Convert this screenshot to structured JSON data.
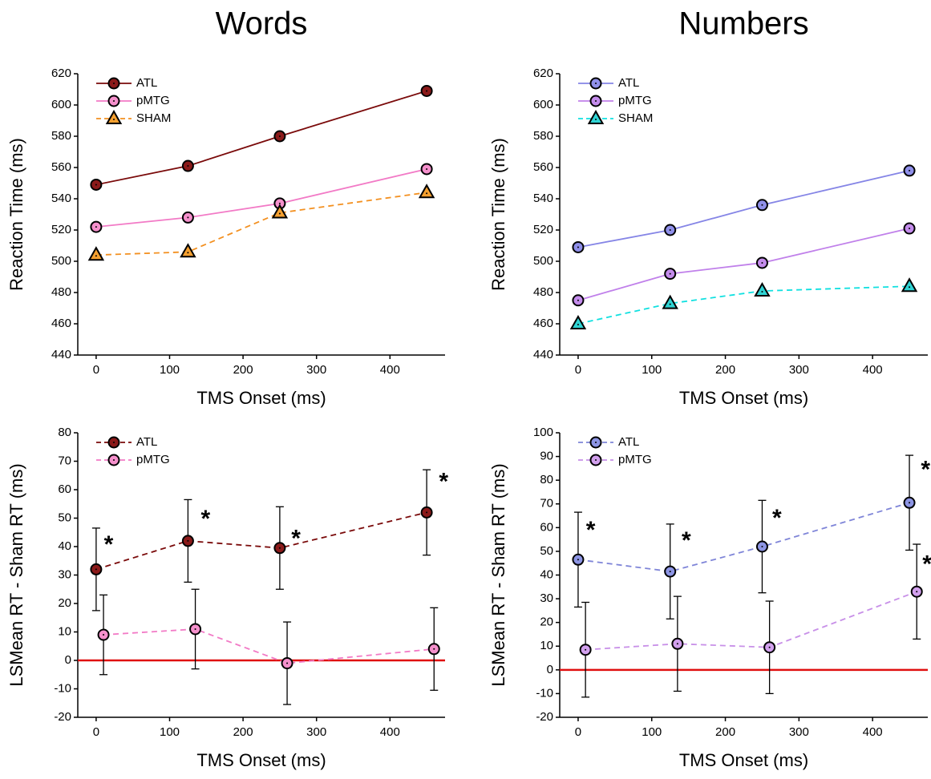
{
  "chart_data": [
    {
      "type": "line",
      "title": "Words",
      "xlabel": "TMS Onset (ms)",
      "ylabel": "Reaction Time (ms)",
      "xlim": [
        -25,
        475
      ],
      "ylim": [
        440,
        620
      ],
      "xticks": [
        0,
        100,
        200,
        300,
        400
      ],
      "yticks": [
        440,
        460,
        480,
        500,
        520,
        540,
        560,
        580,
        600,
        620
      ],
      "legend": "upper left",
      "series": [
        {
          "name": "ATL",
          "color": "#7a0a0a",
          "marker_color": "#8b1a1a",
          "marker": "circle",
          "linestyle": "solid",
          "x": [
            0,
            125,
            250,
            450
          ],
          "values": [
            549,
            561,
            580,
            609
          ]
        },
        {
          "name": "pMTG",
          "color": "#f27ac6",
          "marker_color": "#f590cc",
          "marker": "circle",
          "linestyle": "solid",
          "x": [
            0,
            125,
            250,
            450
          ],
          "values": [
            522,
            528,
            537,
            559
          ]
        },
        {
          "name": "SHAM",
          "color": "#f39020",
          "marker_color": "#f5a030",
          "marker": "triangle",
          "linestyle": "dashed",
          "x": [
            0,
            125,
            250,
            450
          ],
          "values": [
            504,
            506,
            531,
            544
          ]
        }
      ]
    },
    {
      "type": "line",
      "title": "Numbers",
      "xlabel": "TMS Onset (ms)",
      "ylabel": "Reaction Time (ms)",
      "xlim": [
        -25,
        475
      ],
      "ylim": [
        440,
        620
      ],
      "xticks": [
        0,
        100,
        200,
        300,
        400
      ],
      "yticks": [
        440,
        460,
        480,
        500,
        520,
        540,
        560,
        580,
        600,
        620
      ],
      "legend": "upper left",
      "series": [
        {
          "name": "ATL",
          "color": "#8585e6",
          "marker_color": "#9090ea",
          "marker": "circle",
          "linestyle": "solid",
          "x": [
            0,
            125,
            250,
            450
          ],
          "values": [
            509,
            520,
            536,
            558
          ]
        },
        {
          "name": "pMTG",
          "color": "#c080ea",
          "marker_color": "#c48cec",
          "marker": "circle",
          "linestyle": "solid",
          "x": [
            0,
            125,
            250,
            450
          ],
          "values": [
            475,
            492,
            499,
            521
          ]
        },
        {
          "name": "SHAM",
          "color": "#10e0e0",
          "marker_color": "#30d4d4",
          "marker": "triangle",
          "linestyle": "dashed",
          "x": [
            0,
            125,
            250,
            450
          ],
          "values": [
            460,
            473,
            481,
            484
          ]
        }
      ]
    },
    {
      "type": "line",
      "xlabel": "TMS Onset (ms)",
      "ylabel": "LSMean RT - Sham RT (ms)",
      "xlim": [
        -25,
        475
      ],
      "ylim": [
        -20,
        80
      ],
      "xticks": [
        0,
        100,
        200,
        300,
        400
      ],
      "yticks": [
        -20,
        -10,
        0,
        10,
        20,
        30,
        40,
        50,
        60,
        70,
        80
      ],
      "legend": "upper left",
      "hline": {
        "value": 0,
        "color": "#e01010"
      },
      "series": [
        {
          "name": "ATL",
          "color": "#7a0a0a",
          "marker_color": "#8b1a1a",
          "marker": "circle",
          "linestyle": "dashed",
          "x": [
            0,
            125,
            250,
            450
          ],
          "values": [
            32,
            42,
            39.5,
            52
          ],
          "errors": [
            14.5,
            14.5,
            14.5,
            15
          ]
        },
        {
          "name": "pMTG",
          "color": "#f27ac6",
          "marker_color": "#f590cc",
          "marker": "circle",
          "linestyle": "dashed",
          "x": [
            10,
            135,
            260,
            460
          ],
          "values": [
            9,
            11,
            -1,
            4
          ],
          "errors": [
            14,
            14,
            14.5,
            14.5
          ]
        }
      ],
      "annotations": [
        {
          "text": "*",
          "x": 17,
          "y": 42
        },
        {
          "text": "*",
          "x": 149,
          "y": 51
        },
        {
          "text": "*",
          "x": 272,
          "y": 44
        },
        {
          "text": "*",
          "x": 473,
          "y": 64
        }
      ]
    },
    {
      "type": "line",
      "xlabel": "TMS Onset (ms)",
      "ylabel": "LSMean RT - Sham RT (ms)",
      "xlim": [
        -25,
        475
      ],
      "ylim": [
        -20,
        100
      ],
      "xticks": [
        0,
        100,
        200,
        300,
        400
      ],
      "yticks": [
        -20,
        -10,
        0,
        10,
        20,
        30,
        40,
        50,
        60,
        70,
        80,
        90,
        100
      ],
      "legend": "upper left",
      "hline": {
        "value": 0,
        "color": "#e01010"
      },
      "series": [
        {
          "name": "ATL",
          "color": "#7f85d8",
          "marker_color": "#8d95e4",
          "marker": "circle",
          "linestyle": "dashed",
          "x": [
            0,
            125,
            250,
            450
          ],
          "values": [
            46.5,
            41.5,
            52,
            70.5
          ],
          "errors": [
            20,
            20,
            19.5,
            20
          ]
        },
        {
          "name": "pMTG",
          "color": "#c890e8",
          "marker_color": "#d2a0ee",
          "marker": "circle",
          "linestyle": "dashed",
          "x": [
            10,
            135,
            260,
            460
          ],
          "values": [
            8.5,
            11,
            9.5,
            33
          ],
          "errors": [
            20,
            20,
            19.5,
            20
          ]
        }
      ],
      "annotations": [
        {
          "text": "*",
          "x": 17,
          "y": 60.5
        },
        {
          "text": "*",
          "x": 147,
          "y": 56
        },
        {
          "text": "*",
          "x": 270,
          "y": 65.5
        },
        {
          "text": "*",
          "x": 472,
          "y": 86
        },
        {
          "text": "*",
          "x": 474,
          "y": 46
        }
      ]
    }
  ]
}
